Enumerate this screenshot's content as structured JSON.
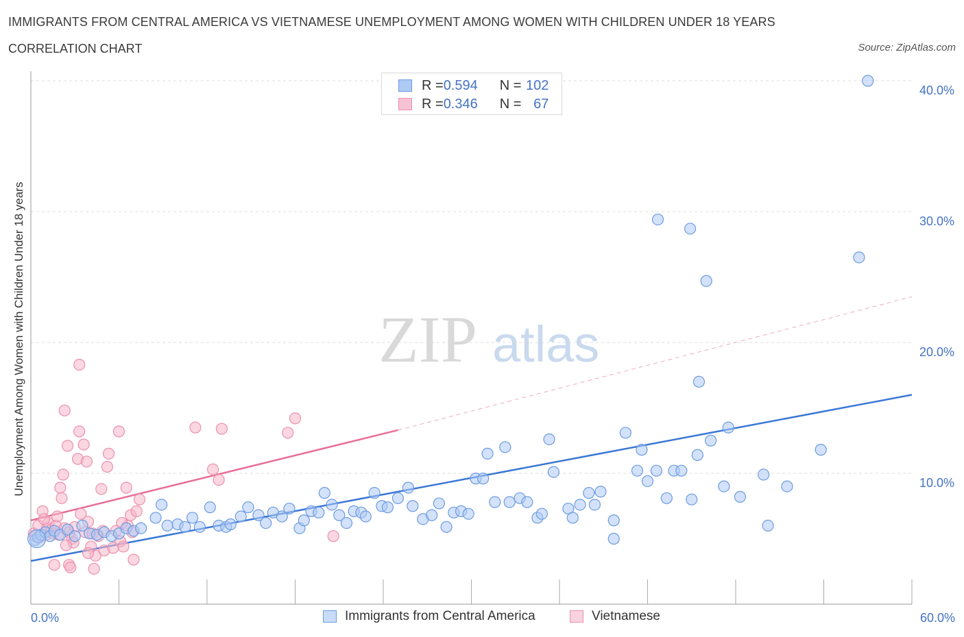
{
  "title": "IMMIGRANTS FROM CENTRAL AMERICA VS VIETNAMESE UNEMPLOYMENT AMONG WOMEN WITH CHILDREN UNDER 18 YEARS",
  "subtitle": "CORRELATION CHART",
  "source": "Source: ZipAtlas.com",
  "watermark": {
    "zip": "ZIP",
    "atlas": "atlas"
  },
  "colors": {
    "blue": "#4472c4",
    "blue_line": "#3a77d6",
    "blue_fill": "#aecbf5",
    "blue_stroke": "#6b9be0",
    "pink": "#e86f97",
    "pink_fill": "#f6b6c9",
    "pink_stroke": "#ec8fae"
  },
  "legend_top": [
    {
      "r_label": "R = ",
      "r": "0.594",
      "n_label": "N = ",
      "n": "102"
    },
    {
      "r_label": "R = ",
      "r": "0.346",
      "n_label": "N = ",
      "n": "67"
    }
  ],
  "legend_bottom": [
    "Immigrants from Central America",
    "Vietnamese"
  ],
  "chart_data": {
    "type": "scatter",
    "title": "",
    "xlabel": "",
    "ylabel": "Unemployment Among Women with Children Under 18 years",
    "xlim": [
      0,
      60
    ],
    "ylim": [
      0,
      40
    ],
    "x_ticks_labeled": [
      "0.0%",
      "60.0%"
    ],
    "y_ticks_labeled": [
      "10.0%",
      "20.0%",
      "30.0%",
      "40.0%"
    ],
    "grid": "horizontal dashed",
    "legend_position": "top-center",
    "series": [
      {
        "name": "Immigrants from Central America",
        "color": "#4472c4",
        "trend": {
          "x": [
            0,
            60
          ],
          "y": [
            3.3,
            16.0
          ],
          "style": "solid"
        },
        "points": [
          [
            0.3,
            4.9
          ],
          [
            0.5,
            5.1
          ],
          [
            0.7,
            5.3
          ],
          [
            1.0,
            5.5
          ],
          [
            1.3,
            5.2
          ],
          [
            1.6,
            5.6
          ],
          [
            2.0,
            5.3
          ],
          [
            2.5,
            5.7
          ],
          [
            3.0,
            5.2
          ],
          [
            3.5,
            6.0
          ],
          [
            4.0,
            5.4
          ],
          [
            4.5,
            5.3
          ],
          [
            5.0,
            5.5
          ],
          [
            5.5,
            5.2
          ],
          [
            6.0,
            5.4
          ],
          [
            6.5,
            5.8
          ],
          [
            7.0,
            5.6
          ],
          [
            7.5,
            5.8
          ],
          [
            8.5,
            6.6
          ],
          [
            8.9,
            7.6
          ],
          [
            9.3,
            6.0
          ],
          [
            10.0,
            6.1
          ],
          [
            10.5,
            5.9
          ],
          [
            11.0,
            6.6
          ],
          [
            11.5,
            5.9
          ],
          [
            12.2,
            7.4
          ],
          [
            12.8,
            6.0
          ],
          [
            13.3,
            5.9
          ],
          [
            13.6,
            6.1
          ],
          [
            14.3,
            6.7
          ],
          [
            14.8,
            7.4
          ],
          [
            15.5,
            6.8
          ],
          [
            16.0,
            6.2
          ],
          [
            16.5,
            7.0
          ],
          [
            17.1,
            6.7
          ],
          [
            17.6,
            7.3
          ],
          [
            18.3,
            5.8
          ],
          [
            18.6,
            6.4
          ],
          [
            19.1,
            7.1
          ],
          [
            19.6,
            7.0
          ],
          [
            20.0,
            8.5
          ],
          [
            20.5,
            7.6
          ],
          [
            21.0,
            6.8
          ],
          [
            21.5,
            6.2
          ],
          [
            22.0,
            7.1
          ],
          [
            22.5,
            7.0
          ],
          [
            22.8,
            6.7
          ],
          [
            23.4,
            8.5
          ],
          [
            23.9,
            7.5
          ],
          [
            24.3,
            7.4
          ],
          [
            25.0,
            8.1
          ],
          [
            25.7,
            8.9
          ],
          [
            26.0,
            7.5
          ],
          [
            26.7,
            6.5
          ],
          [
            27.3,
            6.8
          ],
          [
            27.8,
            7.7
          ],
          [
            28.3,
            5.9
          ],
          [
            28.8,
            7.0
          ],
          [
            29.3,
            7.1
          ],
          [
            29.8,
            6.9
          ],
          [
            30.3,
            9.6
          ],
          [
            30.8,
            9.6
          ],
          [
            31.1,
            11.5
          ],
          [
            31.6,
            7.8
          ],
          [
            32.3,
            12.0
          ],
          [
            32.6,
            7.8
          ],
          [
            33.3,
            8.1
          ],
          [
            33.8,
            7.8
          ],
          [
            34.5,
            6.6
          ],
          [
            34.8,
            6.9
          ],
          [
            35.3,
            12.6
          ],
          [
            35.6,
            10.1
          ],
          [
            36.6,
            7.3
          ],
          [
            36.9,
            6.6
          ],
          [
            37.4,
            7.6
          ],
          [
            38.0,
            8.5
          ],
          [
            38.4,
            7.6
          ],
          [
            38.8,
            8.6
          ],
          [
            39.7,
            6.4
          ],
          [
            39.7,
            5.0
          ],
          [
            40.5,
            13.1
          ],
          [
            41.3,
            10.2
          ],
          [
            41.6,
            11.8
          ],
          [
            42.0,
            9.4
          ],
          [
            42.6,
            10.2
          ],
          [
            43.3,
            8.1
          ],
          [
            43.8,
            10.2
          ],
          [
            44.3,
            10.2
          ],
          [
            45.0,
            8.0
          ],
          [
            45.4,
            11.4
          ],
          [
            46.3,
            12.5
          ],
          [
            47.2,
            9.0
          ],
          [
            47.5,
            13.5
          ],
          [
            48.3,
            8.2
          ],
          [
            49.9,
            9.9
          ],
          [
            50.2,
            6.0
          ],
          [
            51.5,
            9.0
          ],
          [
            53.8,
            11.8
          ],
          [
            42.7,
            29.4
          ],
          [
            44.9,
            28.7
          ],
          [
            46.0,
            24.7
          ],
          [
            45.5,
            17.0
          ],
          [
            56.4,
            26.5
          ],
          [
            57.0,
            40.0
          ]
        ]
      },
      {
        "name": "Vietnamese",
        "color": "#e86f97",
        "trend": {
          "x": [
            0,
            25
          ],
          "y": [
            6.4,
            13.3
          ],
          "style": "solid",
          "extended": {
            "x": [
              25,
              60
            ],
            "y": [
              13.3,
              23.5
            ],
            "style": "dashed"
          }
        },
        "points": [
          [
            0.2,
            5.4
          ],
          [
            0.3,
            5.2
          ],
          [
            0.5,
            6.0
          ],
          [
            0.6,
            5.1
          ],
          [
            0.8,
            7.1
          ],
          [
            1.0,
            5.3
          ],
          [
            1.1,
            5.8
          ],
          [
            1.2,
            6.2
          ],
          [
            1.4,
            5.7
          ],
          [
            1.5,
            5.4
          ],
          [
            1.7,
            6.0
          ],
          [
            1.9,
            5.3
          ],
          [
            2.0,
            8.9
          ],
          [
            2.1,
            8.1
          ],
          [
            2.2,
            9.9
          ],
          [
            2.3,
            14.8
          ],
          [
            2.3,
            5.8
          ],
          [
            2.5,
            12.1
          ],
          [
            2.6,
            5.5
          ],
          [
            2.8,
            5.0
          ],
          [
            2.9,
            4.7
          ],
          [
            3.0,
            5.9
          ],
          [
            3.2,
            11.1
          ],
          [
            3.3,
            13.2
          ],
          [
            3.4,
            6.9
          ],
          [
            3.6,
            12.2
          ],
          [
            3.7,
            5.5
          ],
          [
            3.8,
            10.9
          ],
          [
            3.9,
            6.3
          ],
          [
            4.1,
            4.4
          ],
          [
            4.2,
            5.4
          ],
          [
            4.4,
            3.7
          ],
          [
            4.6,
            5.2
          ],
          [
            4.8,
            8.8
          ],
          [
            4.9,
            5.6
          ],
          [
            5.0,
            4.1
          ],
          [
            5.2,
            10.5
          ],
          [
            5.3,
            11.5
          ],
          [
            5.6,
            4.3
          ],
          [
            5.8,
            5.6
          ],
          [
            6.0,
            13.2
          ],
          [
            6.1,
            4.8
          ],
          [
            6.3,
            4.4
          ],
          [
            6.5,
            8.9
          ],
          [
            6.6,
            6.0
          ],
          [
            6.8,
            6.8
          ],
          [
            6.9,
            5.5
          ],
          [
            7.0,
            3.4
          ],
          [
            7.2,
            7.1
          ],
          [
            7.4,
            8.0
          ],
          [
            1.6,
            3.0
          ],
          [
            2.6,
            3.0
          ],
          [
            2.7,
            2.8
          ],
          [
            4.3,
            2.7
          ],
          [
            11.2,
            13.5
          ],
          [
            12.4,
            10.3
          ],
          [
            12.8,
            9.5
          ],
          [
            13.0,
            13.4
          ],
          [
            17.5,
            13.1
          ],
          [
            18.0,
            14.2
          ],
          [
            20.6,
            5.2
          ],
          [
            3.3,
            18.3
          ],
          [
            0.9,
            6.5
          ],
          [
            1.8,
            6.7
          ],
          [
            2.4,
            4.5
          ],
          [
            3.9,
            3.9
          ],
          [
            6.2,
            6.2
          ]
        ]
      }
    ]
  }
}
